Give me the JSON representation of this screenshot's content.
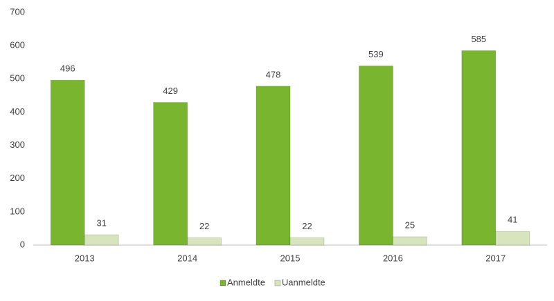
{
  "chart_data": {
    "type": "bar",
    "categories": [
      "2013",
      "2014",
      "2015",
      "2016",
      "2017"
    ],
    "series": [
      {
        "name": "Anmeldte",
        "color": "#7ab530",
        "values": [
          496,
          429,
          478,
          539,
          585
        ]
      },
      {
        "name": "Uanmeldte",
        "color": "#d7e4bd",
        "values": [
          31,
          22,
          22,
          25,
          41
        ]
      }
    ],
    "ylim": [
      0,
      700
    ],
    "yticks": [
      0,
      100,
      200,
      300,
      400,
      500,
      600,
      700
    ],
    "grid": false,
    "legend": "bottom"
  }
}
